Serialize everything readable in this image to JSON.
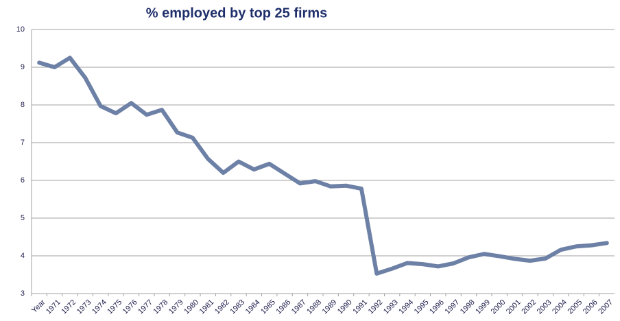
{
  "chart_data": {
    "type": "line",
    "title": "%  employed by top 25 firms",
    "categories": [
      "Year",
      "1971",
      "1972",
      "1973",
      "1974",
      "1975",
      "1976",
      "1977",
      "1978",
      "1979",
      "1980",
      "1981",
      "1982",
      "1983",
      "1984",
      "1985",
      "1986",
      "1987",
      "1988",
      "1989",
      "1990",
      "1991",
      "1992",
      "1993",
      "1994",
      "1995",
      "1996",
      "1997",
      "1998",
      "1999",
      "2000",
      "2001",
      "2002",
      "2003",
      "2004",
      "2005",
      "2006",
      "2007"
    ],
    "series": [
      {
        "color": "#6d80a6",
        "values": [
          9.12,
          9.0,
          9.25,
          8.72,
          7.97,
          7.78,
          8.05,
          7.74,
          7.87,
          7.27,
          7.13,
          6.57,
          6.2,
          6.5,
          6.29,
          6.44,
          6.18,
          5.92,
          5.98,
          5.84,
          5.86,
          5.78,
          3.53,
          3.66,
          3.81,
          3.78,
          3.72,
          3.8,
          3.96,
          4.05,
          3.99,
          3.92,
          3.87,
          3.93,
          4.16,
          4.25,
          4.28,
          4.34
        ]
      }
    ],
    "ylim": [
      3,
      10
    ],
    "yticks": [
      3,
      4,
      5,
      6,
      7,
      8,
      9,
      10
    ],
    "grid": true
  }
}
